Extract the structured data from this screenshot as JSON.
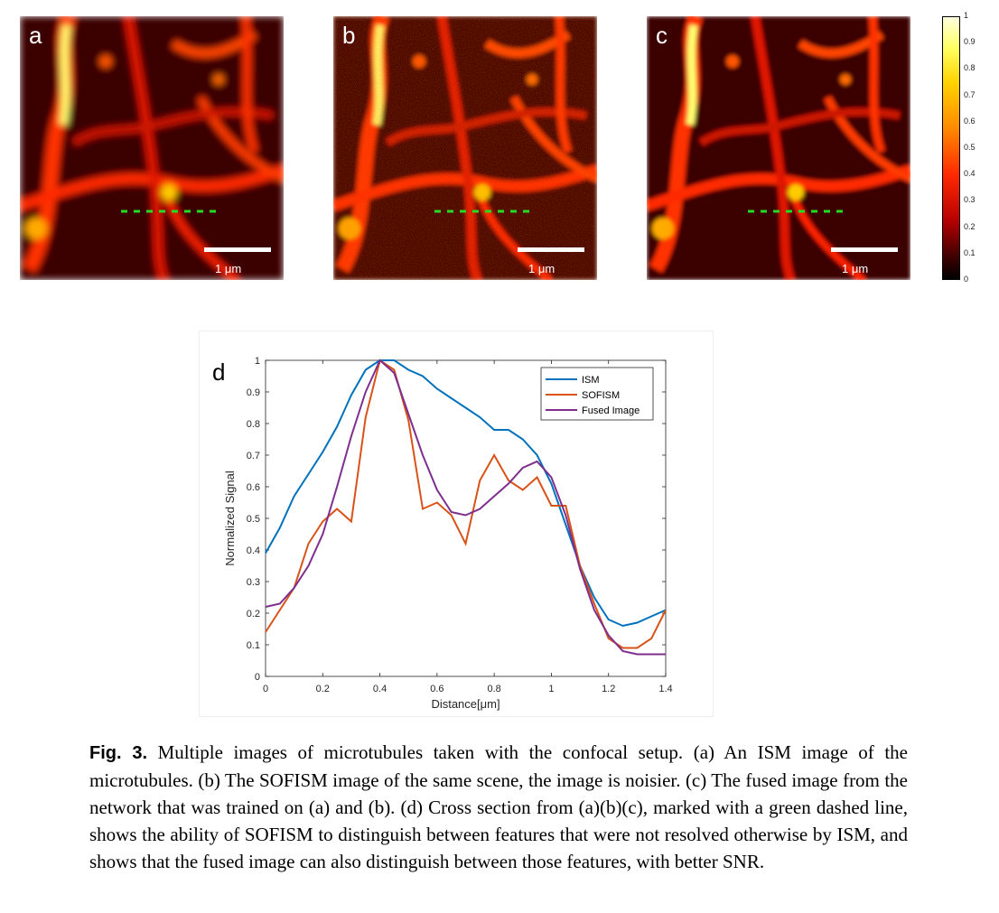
{
  "panels": [
    {
      "label": "a",
      "scale_label": "1 μm"
    },
    {
      "label": "b",
      "scale_label": "1 μm"
    },
    {
      "label": "c",
      "scale_label": "1 μm"
    }
  ],
  "colorbar": {
    "ticks": [
      "1",
      "0.9",
      "0.8",
      "0.7",
      "0.6",
      "0.5",
      "0.4",
      "0.3",
      "0.2",
      "0.1",
      "0"
    ]
  },
  "chart_data": {
    "type": "line",
    "panel_label": "d",
    "xlabel": "Distance[μm]",
    "ylabel": "Normalized Signal",
    "xlim": [
      0,
      1.4
    ],
    "ylim": [
      0,
      1
    ],
    "xticks": [
      0,
      0.2,
      0.4,
      0.6,
      0.8,
      1,
      1.2,
      1.4
    ],
    "yticks": [
      0,
      0.1,
      0.2,
      0.3,
      0.4,
      0.5,
      0.6,
      0.7,
      0.8,
      0.9,
      1
    ],
    "legend_position": "top-right",
    "x": [
      0,
      0.05,
      0.1,
      0.15,
      0.2,
      0.25,
      0.3,
      0.35,
      0.4,
      0.45,
      0.5,
      0.55,
      0.6,
      0.65,
      0.7,
      0.75,
      0.8,
      0.85,
      0.9,
      0.95,
      1.0,
      1.05,
      1.1,
      1.15,
      1.2,
      1.25,
      1.3,
      1.35,
      1.4
    ],
    "series": [
      {
        "name": "ISM",
        "color": "#0072BD",
        "values": [
          0.39,
          0.47,
          0.57,
          0.64,
          0.71,
          0.79,
          0.89,
          0.97,
          1.0,
          1.0,
          0.97,
          0.95,
          0.91,
          0.88,
          0.85,
          0.82,
          0.78,
          0.78,
          0.75,
          0.7,
          0.61,
          0.48,
          0.35,
          0.25,
          0.18,
          0.16,
          0.17,
          0.19,
          0.21
        ]
      },
      {
        "name": "SOFISM",
        "color": "#D95319",
        "values": [
          0.14,
          0.21,
          0.28,
          0.42,
          0.49,
          0.53,
          0.49,
          0.82,
          1.0,
          0.97,
          0.81,
          0.53,
          0.55,
          0.51,
          0.42,
          0.62,
          0.7,
          0.62,
          0.59,
          0.63,
          0.54,
          0.54,
          0.35,
          0.23,
          0.12,
          0.09,
          0.09,
          0.12,
          0.21
        ]
      },
      {
        "name": "Fused Image",
        "color": "#7E2F8E",
        "values": [
          0.22,
          0.23,
          0.28,
          0.35,
          0.45,
          0.6,
          0.76,
          0.9,
          1.0,
          0.96,
          0.83,
          0.7,
          0.59,
          0.52,
          0.51,
          0.53,
          0.57,
          0.61,
          0.66,
          0.68,
          0.63,
          0.51,
          0.34,
          0.21,
          0.13,
          0.08,
          0.07,
          0.07,
          0.07
        ]
      }
    ]
  },
  "caption": {
    "fig_label": "Fig. 3.",
    "text": " Multiple images of microtubules taken with the confocal setup. (a) An ISM image of the microtubules. (b) The SOFISM image of the same scene, the image is noisier. (c) The fused image from the network that was trained on (a) and (b). (d) Cross section from (a)(b)(c), marked with a green dashed line, shows the ability of SOFISM to distinguish between features that were not resolved otherwise by ISM, and shows that the fused image can also distinguish between those features, with better SNR."
  }
}
